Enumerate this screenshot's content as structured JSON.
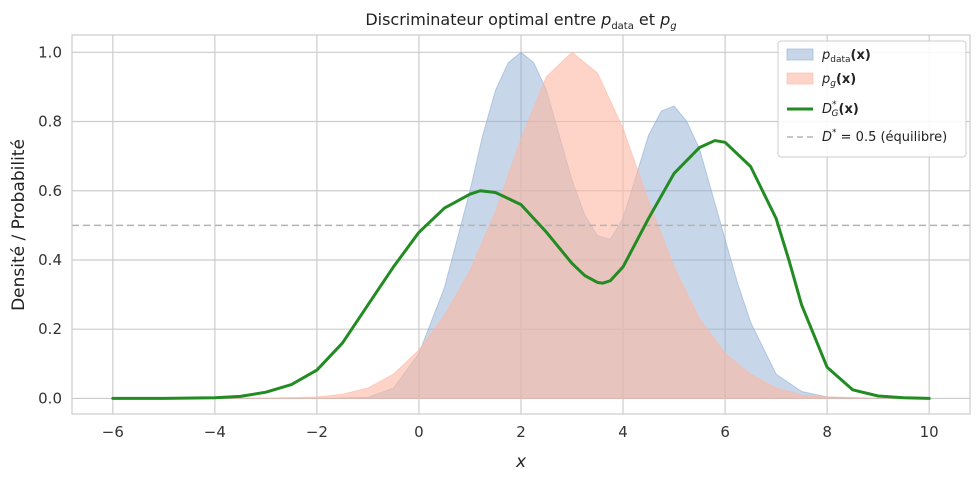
{
  "chart_data": {
    "type": "area",
    "title": {
      "prefix": "Discriminateur optimal entre ",
      "p1": "p",
      "p1_sub": "data",
      "mid": " et ",
      "p2": "p",
      "p2_sub": "g"
    },
    "xlabel": "x",
    "ylabel": "Densité / Probabilité",
    "xlim": [
      -6.8,
      10.8
    ],
    "ylim": [
      -0.045,
      1.05
    ],
    "xticks": [
      -6,
      -4,
      -2,
      0,
      2,
      4,
      6,
      8,
      10
    ],
    "xtick_labels": [
      "−6",
      "−4",
      "−2",
      "0",
      "2",
      "4",
      "6",
      "8",
      "10"
    ],
    "yticks": [
      0.0,
      0.2,
      0.4,
      0.6,
      0.8,
      1.0
    ],
    "ytick_labels": [
      "0.0",
      "0.2",
      "0.4",
      "0.6",
      "0.8",
      "1.0"
    ],
    "grid": true,
    "legend_position": "top-right",
    "series": [
      {
        "name": "p_data(x)",
        "kind": "area",
        "color": "#8fb0d3",
        "x": [
          -6,
          -5,
          -4,
          -3,
          -2,
          -1,
          -0.5,
          0,
          0.5,
          1,
          1.25,
          1.5,
          1.75,
          2,
          2.25,
          2.5,
          2.75,
          3,
          3.25,
          3.5,
          3.75,
          4,
          4.25,
          4.5,
          4.75,
          5,
          5.25,
          5.5,
          5.75,
          6,
          6.25,
          6.5,
          7,
          7.5,
          8,
          9,
          10
        ],
        "values": [
          0,
          0,
          0,
          0,
          0,
          0.003,
          0.03,
          0.13,
          0.32,
          0.6,
          0.76,
          0.89,
          0.97,
          1.0,
          0.97,
          0.89,
          0.76,
          0.63,
          0.53,
          0.47,
          0.46,
          0.52,
          0.64,
          0.76,
          0.83,
          0.845,
          0.8,
          0.72,
          0.59,
          0.46,
          0.33,
          0.22,
          0.07,
          0.02,
          0.004,
          0,
          0
        ]
      },
      {
        "name": "p_g(x)",
        "kind": "area",
        "color": "#fdb8a4",
        "x": [
          -6,
          -4,
          -3,
          -2,
          -1.5,
          -1,
          -0.5,
          0,
          0.5,
          1,
          1.5,
          2,
          2.5,
          3,
          3.5,
          4,
          4.5,
          5,
          5.5,
          6,
          6.5,
          7,
          7.5,
          8,
          9,
          10
        ],
        "values": [
          0,
          0,
          0.001,
          0.004,
          0.012,
          0.03,
          0.07,
          0.14,
          0.24,
          0.37,
          0.54,
          0.75,
          0.93,
          1.0,
          0.94,
          0.78,
          0.57,
          0.38,
          0.23,
          0.13,
          0.07,
          0.03,
          0.01,
          0.004,
          0,
          0
        ]
      },
      {
        "name": "D*_G(x)",
        "kind": "line",
        "color": "#228b22",
        "x": [
          -6,
          -5,
          -4,
          -3.5,
          -3,
          -2.5,
          -2,
          -1.5,
          -1,
          -0.5,
          0,
          0.5,
          1,
          1.2,
          1.5,
          2,
          2.5,
          3,
          3.25,
          3.5,
          3.6,
          3.75,
          4,
          4.5,
          5,
          5.5,
          5.8,
          6,
          6.5,
          7,
          7.25,
          7.5,
          8,
          8.5,
          9,
          9.5,
          10
        ],
        "values": [
          0,
          0,
          0.002,
          0.006,
          0.018,
          0.04,
          0.082,
          0.16,
          0.27,
          0.38,
          0.48,
          0.55,
          0.59,
          0.6,
          0.595,
          0.56,
          0.48,
          0.39,
          0.355,
          0.335,
          0.333,
          0.34,
          0.38,
          0.52,
          0.65,
          0.725,
          0.745,
          0.74,
          0.67,
          0.52,
          0.4,
          0.27,
          0.09,
          0.025,
          0.007,
          0.002,
          0
        ]
      },
      {
        "name": "D* = 0.5 (équilibre)",
        "kind": "hline",
        "color": "#b4b4b4",
        "y": 0.5
      }
    ],
    "legend": [
      {
        "base": "p",
        "sub": "data",
        "rest": "(x)"
      },
      {
        "base": "p",
        "sub": "g",
        "rest": "(x)"
      },
      {
        "base": "D",
        "sup": "*",
        "sub": "G",
        "rest": "(x)"
      },
      {
        "base": "D",
        "sup": "*",
        "rest": " = 0.5 (équilibre)"
      }
    ]
  }
}
